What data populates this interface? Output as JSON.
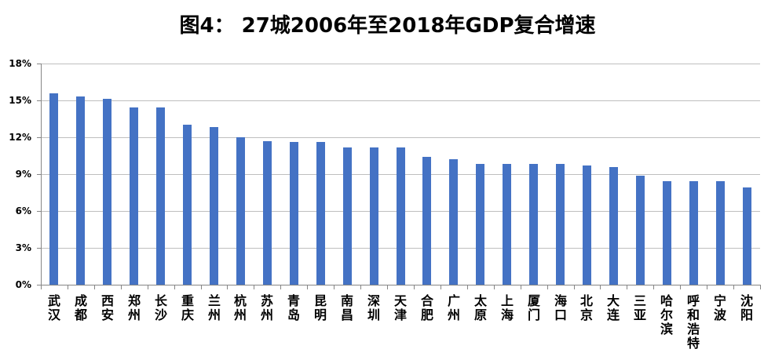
{
  "title": "图4： 27城2006年至2018年GDP复合增速",
  "chart_data": {
    "type": "bar",
    "title": "图4： 27城2006年至2018年GDP复合增速",
    "xlabel": "",
    "ylabel": "",
    "ylim": [
      0,
      18
    ],
    "yticks": [
      "0%",
      "3%",
      "6%",
      "9%",
      "12%",
      "15%",
      "18%"
    ],
    "grid": true,
    "legend": null,
    "bar_color": "#4472c4",
    "categories": [
      "武汉",
      "成都",
      "西安",
      "郑州",
      "长沙",
      "重庆",
      "兰州",
      "杭州",
      "苏州",
      "青岛",
      "昆明",
      "南昌",
      "深圳",
      "天津",
      "合肥",
      "广州",
      "太原",
      "上海",
      "厦门",
      "海口",
      "北京",
      "大连",
      "三亚",
      "哈尔滨",
      "呼和浩特",
      "宁波",
      "沈阳"
    ],
    "values": [
      15.6,
      15.3,
      15.1,
      14.4,
      14.4,
      13.0,
      12.8,
      12.0,
      11.7,
      11.6,
      11.6,
      11.2,
      11.2,
      11.2,
      10.4,
      10.2,
      9.8,
      9.8,
      9.8,
      9.8,
      9.7,
      9.6,
      8.9,
      8.4,
      8.4,
      8.4,
      7.9
    ],
    "unit": "%"
  }
}
